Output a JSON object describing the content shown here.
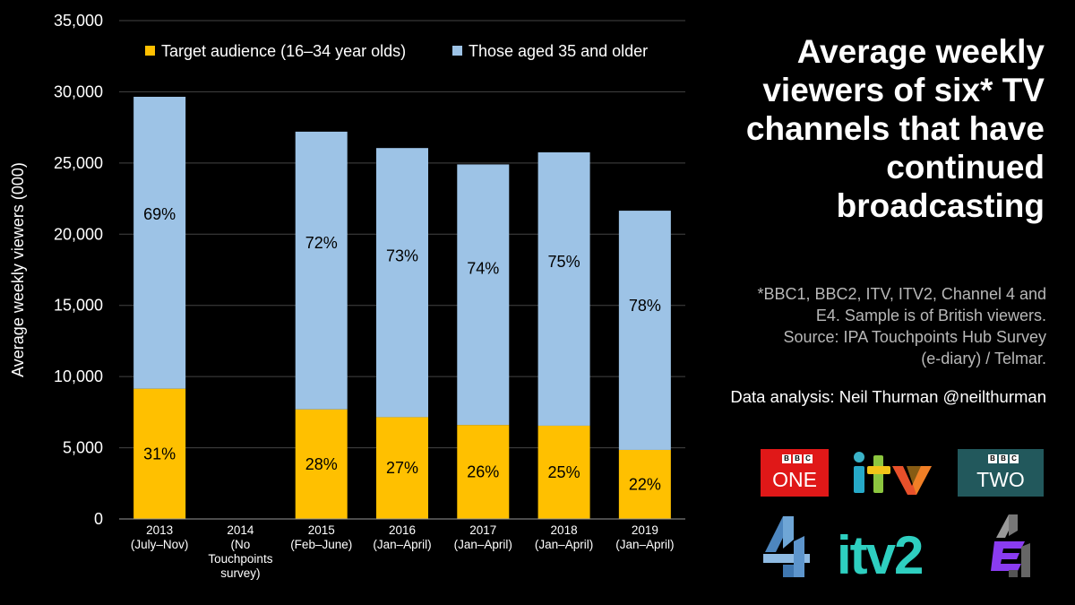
{
  "heading": {
    "lines": [
      "Average weekly",
      "viewers of six* TV",
      "channels that have",
      "continued",
      "broadcasting"
    ]
  },
  "notes": {
    "lines": [
      "*BBC1, BBC2, ITV, ITV2, Channel 4 and",
      "E4. Sample is of British viewers.",
      "Source: IPA Touchpoints Hub Survey",
      "(e-diary) / Telmar."
    ],
    "credit": "Data analysis: Neil Thurman @neilthurman"
  },
  "logos": {
    "bbc_one": {
      "brand": "B B C",
      "name": "ONE",
      "color": "#e01818"
    },
    "bbc_two": {
      "brand": "B B C",
      "name": "TWO",
      "color": "#22585c"
    },
    "itv": {
      "name": "itv"
    },
    "itv2": {
      "name": "itv2",
      "color": "#2ecfc0"
    },
    "channel4": {
      "icon": "channel-4-logo",
      "color": "#6fa6d6"
    },
    "e4": {
      "icon": "e4-logo",
      "color": "#8a3cf0"
    }
  },
  "chart_data": {
    "type": "bar",
    "stacked": true,
    "ylabel": "Average weekly viewers (000)",
    "ylim": [
      0,
      35000
    ],
    "yticks": [
      "0",
      "5,000",
      "10,000",
      "15,000",
      "20,000",
      "25,000",
      "30,000",
      "35,000"
    ],
    "grid": true,
    "legend_position": "top",
    "categories": [
      [
        "2013",
        "(July–Nov)"
      ],
      [
        "2014",
        "(No",
        "Touchpoints",
        "survey)"
      ],
      [
        "2015",
        "(Feb–June)"
      ],
      [
        "2016",
        "(Jan–April)"
      ],
      [
        "2017",
        "(Jan–April)"
      ],
      [
        "2018",
        "(Jan–April)"
      ],
      [
        "2019",
        "(Jan–April)"
      ]
    ],
    "series": [
      {
        "name": "Target audience (16–34 year olds)",
        "color": "#ffc000",
        "values": [
          9150,
          null,
          7700,
          7150,
          6600,
          6550,
          4850
        ],
        "labels": [
          "31%",
          "",
          "28%",
          "27%",
          "26%",
          "25%",
          "22%"
        ]
      },
      {
        "name": "Those aged 35 and older",
        "color": "#9dc3e6",
        "values": [
          20500,
          null,
          19500,
          18900,
          18300,
          19200,
          16800
        ],
        "labels": [
          "69%",
          "",
          "72%",
          "73%",
          "74%",
          "75%",
          "78%"
        ]
      }
    ]
  }
}
